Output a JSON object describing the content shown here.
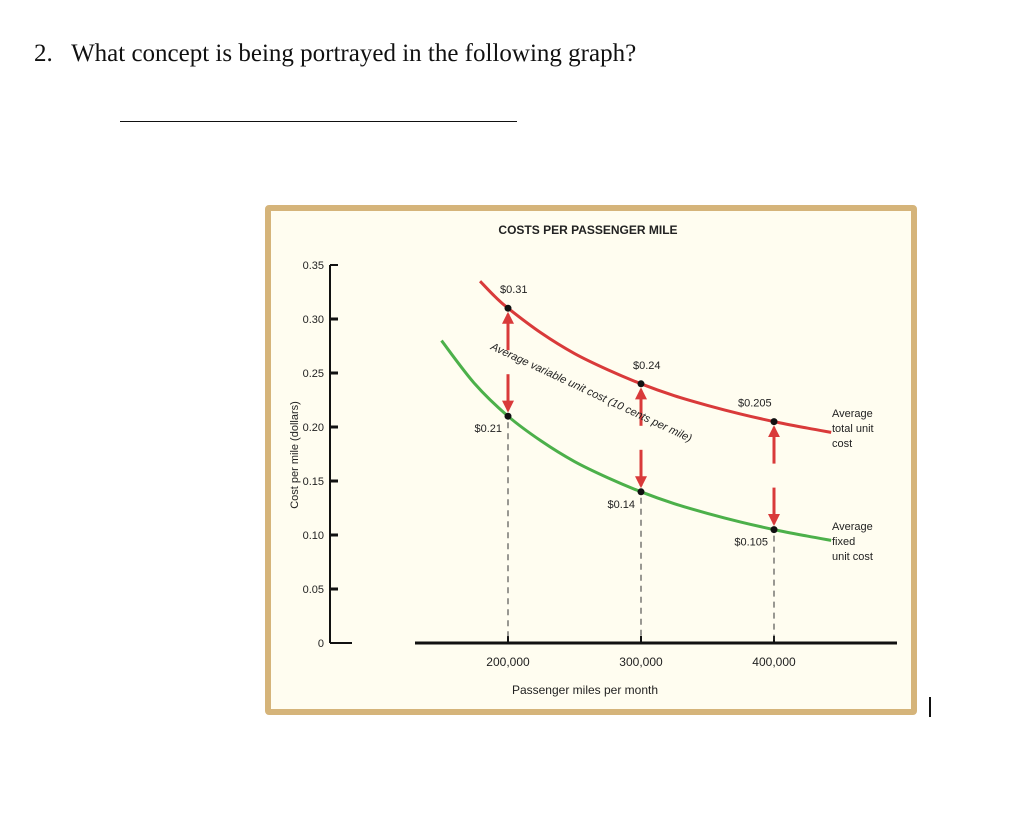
{
  "question": {
    "number": "2.",
    "text": "What concept is being portrayed in the following graph?"
  },
  "chart_data": {
    "type": "line",
    "title": "COSTS PER PASSENGER MILE",
    "xlabel": "Passenger miles per month",
    "ylabel": "Cost per mile (dollars)",
    "ylim": [
      0,
      0.35
    ],
    "xlim": [
      120000,
      490000
    ],
    "yticks": [
      "0",
      "0.05",
      "0.10",
      "0.15",
      "0.20",
      "0.25",
      "0.30",
      "0.35"
    ],
    "xticks": [
      {
        "value": 200000,
        "label": "200,000"
      },
      {
        "value": 300000,
        "label": "300,000"
      },
      {
        "value": 400000,
        "label": "400,000"
      }
    ],
    "series": [
      {
        "name": "Average total unit cost",
        "label_lines": [
          "Average",
          "total unit",
          "cost"
        ],
        "color": "#d93a3a",
        "x": [
          179000,
          190000,
          200000,
          225000,
          250000,
          275000,
          300000,
          325000,
          350000,
          375000,
          400000,
          425000,
          443000
        ],
        "y": [
          0.335,
          0.321,
          0.31,
          0.287,
          0.268,
          0.253,
          0.24,
          0.229,
          0.22,
          0.212,
          0.205,
          0.199,
          0.195
        ]
      },
      {
        "name": "Average fixed unit cost",
        "label_lines": [
          "Average",
          "fixed",
          "unit cost"
        ],
        "color": "#4cb04a",
        "x": [
          150000,
          175000,
          200000,
          225000,
          250000,
          275000,
          300000,
          325000,
          350000,
          375000,
          400000,
          425000,
          443000
        ],
        "y": [
          0.28,
          0.24,
          0.21,
          0.187,
          0.168,
          0.153,
          0.14,
          0.129,
          0.12,
          0.112,
          0.105,
          0.099,
          0.095
        ]
      }
    ],
    "points": [
      {
        "x": 200000,
        "y": 0.31,
        "label": "$0.31"
      },
      {
        "x": 300000,
        "y": 0.24,
        "label": "$0.24"
      },
      {
        "x": 400000,
        "y": 0.205,
        "label": "$0.205"
      },
      {
        "x": 200000,
        "y": 0.21,
        "label": "$0.21"
      },
      {
        "x": 300000,
        "y": 0.14,
        "label": "$0.14"
      },
      {
        "x": 400000,
        "y": 0.105,
        "label": "$0.105"
      }
    ],
    "annotation": "Average variable unit cost (10 cents per mile)"
  }
}
